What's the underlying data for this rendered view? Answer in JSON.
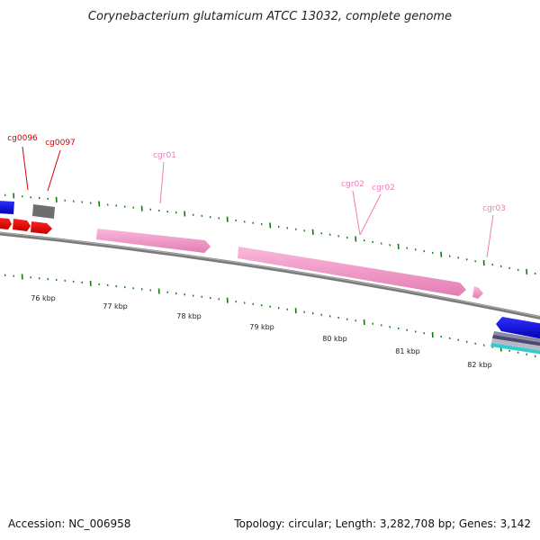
{
  "header": {
    "title": "Corynebacterium glutamicum ATCC 13032, complete genome"
  },
  "footer": {
    "accession": "Accession: NC_006958",
    "summary": "Topology: circular; Length: 3,282,708 bp; Genes: 3,142"
  },
  "scale": {
    "labels": [
      "76 kbp",
      "77 kbp",
      "78 kbp",
      "79 kbp",
      "80 kbp",
      "81 kbp",
      "82 kbp"
    ]
  },
  "features": {
    "cds_labels": [
      "cg0096",
      "cg0097"
    ],
    "rna_labels": [
      "cgr01",
      "cgr02",
      "cgr02",
      "cgr03"
    ]
  },
  "colors": {
    "cds_red": "#ff0000",
    "cds_blue": "#0000ee",
    "cds_gray": "#707070",
    "rna_pink": "#f799c9",
    "rna_label": "#f07ab8",
    "cds_label": "#d40000",
    "tick_green": "#117711",
    "backbone": "#7a7a7a",
    "teal": "#33cccc"
  }
}
